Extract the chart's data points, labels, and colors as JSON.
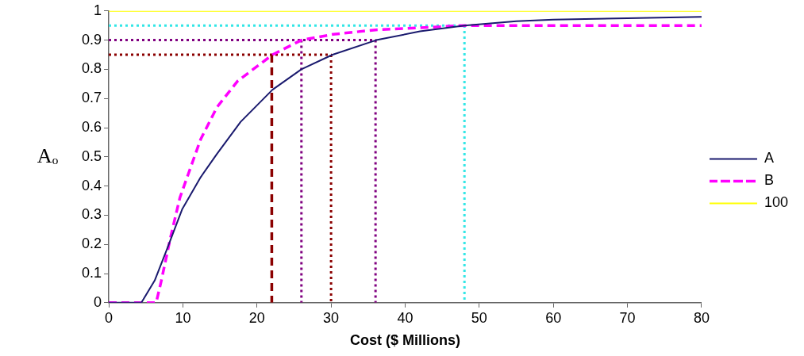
{
  "chart_data": {
    "type": "line",
    "xlabel": "Cost ($ Millions)",
    "ylabel": "Aₒ",
    "xlim": [
      0,
      80
    ],
    "xticks": [
      0,
      10,
      20,
      30,
      40,
      50,
      60,
      70,
      80
    ],
    "ylim": [
      0,
      1
    ],
    "yticks": [
      0,
      0.1,
      0.2,
      0.3,
      0.4,
      0.5,
      0.6,
      0.7,
      0.8,
      0.9,
      1
    ],
    "grid": false,
    "legend": "right",
    "marker": "none",
    "series": [
      {
        "name": "A",
        "color": "#1a1a6e",
        "line_style": "solid",
        "x": [
          0,
          4.4,
          6.2,
          7.8,
          9.9,
          12.4,
          14.6,
          17.8,
          22.1,
          26,
          30.2,
          36.1,
          42,
          48,
          55,
          60,
          70,
          80
        ],
        "values": [
          0,
          0,
          0.076,
          0.18,
          0.32,
          0.43,
          0.51,
          0.62,
          0.73,
          0.8,
          0.85,
          0.9,
          0.93,
          0.95,
          0.965,
          0.97,
          0.975,
          0.98
        ]
      },
      {
        "name": "B",
        "color": "#ff00ff",
        "line_style": "dashed",
        "x": [
          0,
          6.4,
          7.1,
          8.3,
          9.6,
          11,
          12.4,
          14.6,
          17.4,
          22.1,
          26,
          30.3,
          36,
          48,
          60,
          80
        ],
        "values": [
          0,
          0,
          0.076,
          0.22,
          0.36,
          0.46,
          0.56,
          0.67,
          0.76,
          0.85,
          0.9,
          0.92,
          0.935,
          0.95,
          0.95,
          0.95
        ]
      },
      {
        "name": "100",
        "color": "#ffff00",
        "line_style": "solid",
        "x": [
          0,
          80
        ],
        "values": [
          1,
          1
        ]
      },
      {
        "color": "#33e6e6",
        "line_style": "dotted",
        "x": [
          0,
          48,
          48
        ],
        "values": [
          0.95,
          0.95,
          0
        ]
      },
      {
        "color": "#800080",
        "line_style": "dotted",
        "x": [
          0,
          36,
          36
        ],
        "values": [
          0.9,
          0.9,
          0
        ]
      },
      {
        "color": "#800080",
        "line_style": "dotted",
        "x": [
          26,
          26
        ],
        "values": [
          0.9,
          0
        ]
      },
      {
        "color": "#8b0000",
        "line_style": "dotted",
        "x": [
          0,
          30,
          30
        ],
        "values": [
          0.85,
          0.85,
          0
        ]
      },
      {
        "color": "#8b0000",
        "line_style": "dashed",
        "x": [
          22,
          22
        ],
        "values": [
          0.85,
          0
        ]
      }
    ]
  }
}
